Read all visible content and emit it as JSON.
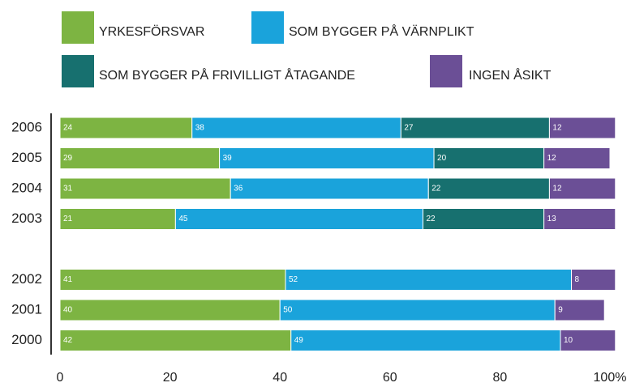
{
  "chart_data": {
    "type": "stacked-bar-horizontal",
    "categories": [
      "2006",
      "2005",
      "2004",
      "2003",
      null,
      "2002",
      "2001",
      "2000"
    ],
    "series": [
      {
        "name": "YRKESFÖRSVAR",
        "color": "#7db442",
        "values": [
          24,
          29,
          31,
          21,
          null,
          41,
          40,
          42
        ]
      },
      {
        "name": "SOM BYGGER PÅ VÄRNPLIKT",
        "color": "#1aa3db",
        "values": [
          38,
          39,
          36,
          45,
          null,
          52,
          50,
          49
        ]
      },
      {
        "name": "SOM BYGGER PÅ FRIVILLIGT ÅTAGANDE",
        "color": "#17706f",
        "values": [
          27,
          20,
          22,
          22,
          null,
          null,
          null,
          null
        ]
      },
      {
        "name": "INGEN ÅSIKT",
        "color": "#6b4f96",
        "values": [
          12,
          12,
          12,
          13,
          null,
          8,
          9,
          10
        ]
      }
    ],
    "xlim": [
      0,
      100
    ],
    "xticks": [
      0,
      20,
      40,
      60,
      80,
      {
        "value": 100,
        "label": "100%"
      }
    ]
  }
}
